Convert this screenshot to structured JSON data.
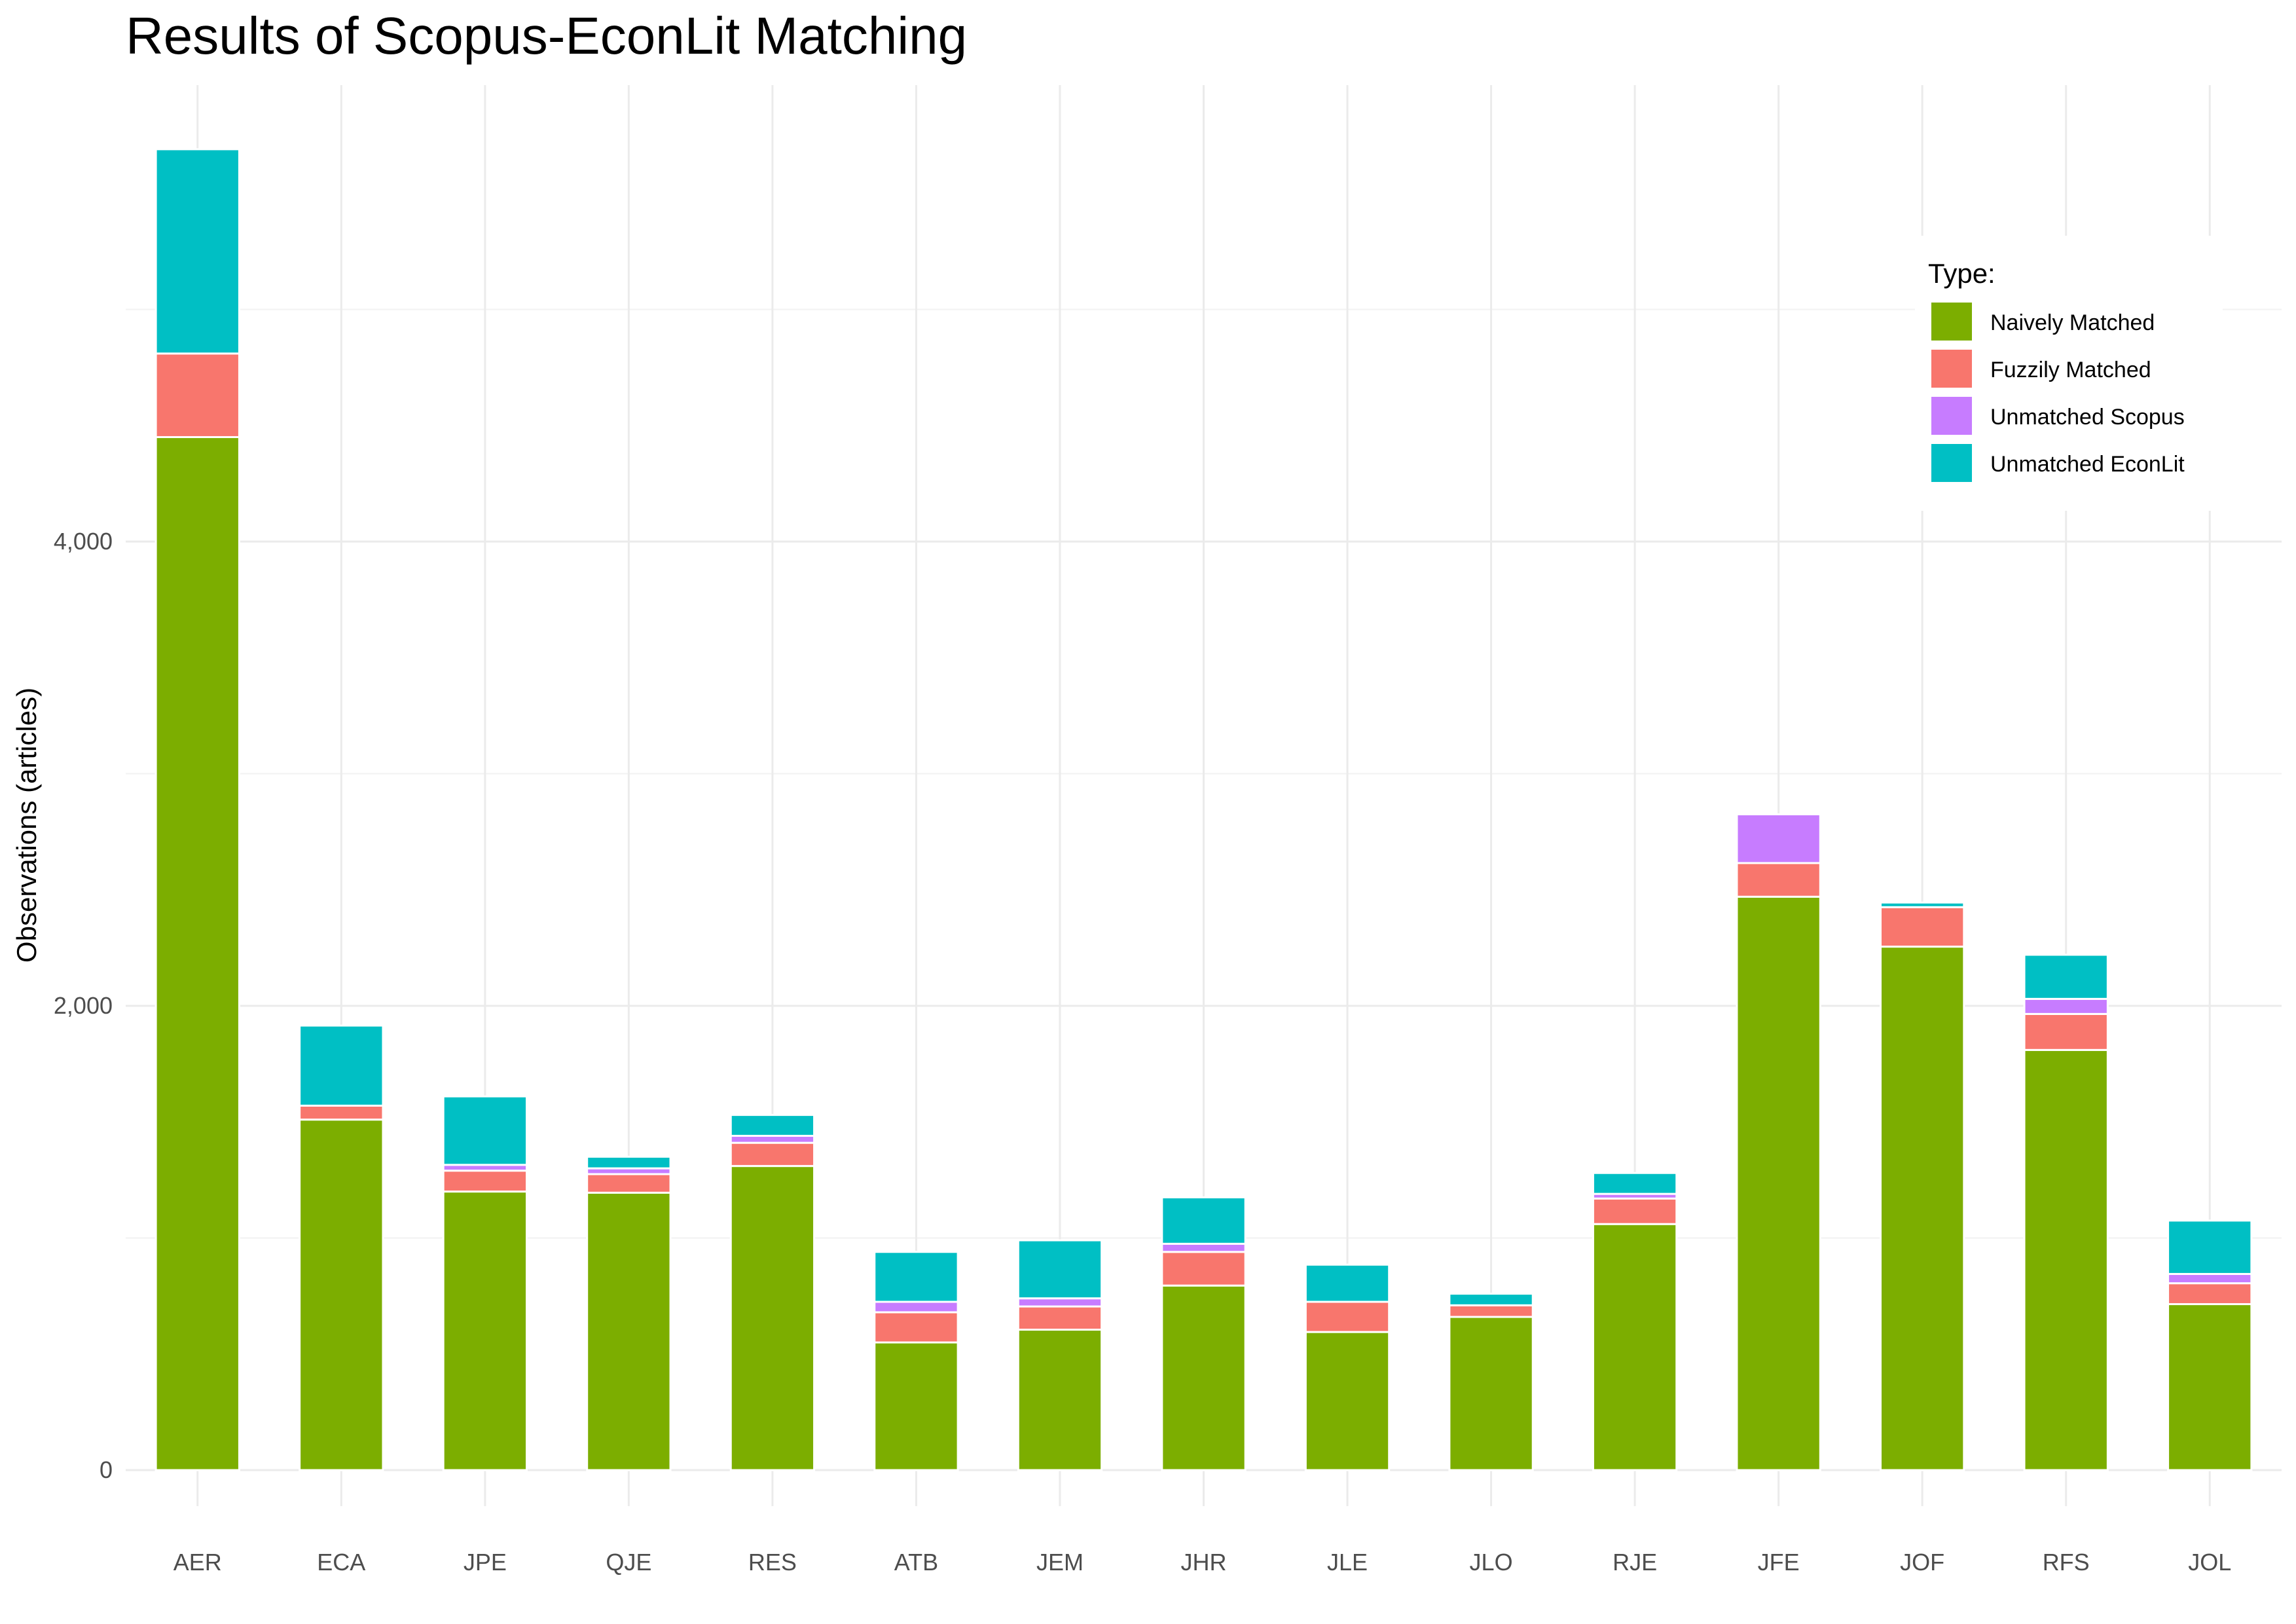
{
  "chart_data": {
    "type": "bar",
    "stacked": true,
    "title": "Results of Scopus-EconLit Matching",
    "ylabel": "Observations (articles)",
    "xlabel": "",
    "ylim": [
      0,
      5700
    ],
    "yticks": [
      0,
      2000,
      4000
    ],
    "ytick_labels": [
      "0",
      "2,000",
      "4,000"
    ],
    "grid": true,
    "legend_position": "top-right",
    "legend_title": "Type:",
    "categories": [
      "AER",
      "ECA",
      "JPE",
      "QJE",
      "RES",
      "ATB",
      "JEM",
      "JHR",
      "JLE",
      "JLO",
      "RJE",
      "JFE",
      "JOF",
      "RFS",
      "JOL"
    ],
    "series": [
      {
        "name": "Naively Matched",
        "color": "#7CAE00",
        "values": [
          4450,
          1510,
          1200,
          1195,
          1310,
          550,
          605,
          795,
          595,
          660,
          1060,
          2470,
          2255,
          1810,
          715
        ]
      },
      {
        "name": "Fuzzily Matched",
        "color": "#F8766D",
        "values": [
          360,
          60,
          90,
          80,
          100,
          130,
          100,
          145,
          130,
          50,
          110,
          145,
          170,
          155,
          90
        ]
      },
      {
        "name": "Unmatched Scopus",
        "color": "#C77CFF",
        "values": [
          0,
          0,
          25,
          25,
          30,
          45,
          35,
          35,
          0,
          0,
          20,
          210,
          0,
          65,
          40
        ]
      },
      {
        "name": "Unmatched EconLit",
        "color": "#00BFC4",
        "values": [
          880,
          345,
          295,
          50,
          90,
          215,
          250,
          200,
          160,
          50,
          90,
          0,
          20,
          190,
          230
        ]
      }
    ]
  }
}
